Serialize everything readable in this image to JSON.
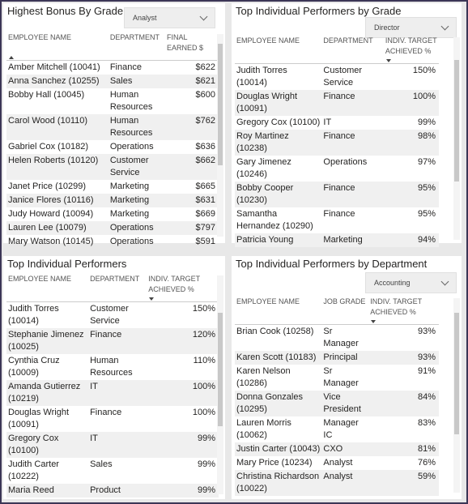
{
  "panels": [
    {
      "title": "Highest Bonus By Grade",
      "slicer": "Analyst",
      "columns": [
        "EMPLOYEE NAME",
        "DEPARTMENT",
        "FINAL EARNED $"
      ],
      "rows": [
        [
          "Amber Mitchell (10041)",
          "Finance",
          "$622"
        ],
        [
          "Anna Sanchez (10255)",
          "Sales",
          "$621"
        ],
        [
          "Bobby Hall (10045)",
          "Human Resources",
          "$600"
        ],
        [
          "Carol Wood (10110)",
          "Human Resources",
          "$762"
        ],
        [
          "Gabriel Cox (10182)",
          "Operations",
          "$636"
        ],
        [
          "Helen Roberts (10120)",
          "Customer Service",
          "$662"
        ],
        [
          "Janet Price (10299)",
          "Marketing",
          "$665"
        ],
        [
          "Janice Flores (10116)",
          "Marketing",
          "$631"
        ],
        [
          "Judy Howard (10094)",
          "Marketing",
          "$669"
        ],
        [
          "Lauren Lee (10079)",
          "Operations",
          "$797"
        ],
        [
          "Mary Watson (10145)",
          "Operations",
          "$591"
        ]
      ]
    },
    {
      "title": "Top Individual Performers by Grade",
      "slicer": "Director",
      "columns": [
        "EMPLOYEE NAME",
        "DEPARTMENT",
        "INDIV. TARGET ACHIEVED %"
      ],
      "rows": [
        [
          "Judith Torres (10014)",
          "Customer Service",
          "150%"
        ],
        [
          "Douglas Wright (10091)",
          "Finance",
          "100%"
        ],
        [
          "Gregory Cox (10100)",
          "IT",
          "99%"
        ],
        [
          "Roy Martinez (10238)",
          "Finance",
          "98%"
        ],
        [
          "Gary Jimenez (10246)",
          "Operations",
          "97%"
        ],
        [
          "Bobby Cooper (10230)",
          "Finance",
          "95%"
        ],
        [
          "Samantha Hernandez (10290)",
          "Finance",
          "95%"
        ],
        [
          "Patricia Young",
          "Marketing",
          "94%"
        ]
      ]
    },
    {
      "title": "Top Individual Performers",
      "columns": [
        "EMPLOYEE NAME",
        "DEPARTMENT",
        "INDIV. TARGET ACHIEVED %"
      ],
      "rows": [
        [
          "Judith Torres (10014)",
          "Customer Service",
          "150%"
        ],
        [
          "Stephanie Jimenez (10025)",
          "Finance",
          "120%"
        ],
        [
          "Cynthia Cruz (10009)",
          "Human Resources",
          "110%"
        ],
        [
          "Amanda Gutierrez (10219)",
          "IT",
          "100%"
        ],
        [
          "Douglas Wright (10091)",
          "Finance",
          "100%"
        ],
        [
          "Gregory Cox (10100)",
          "IT",
          "99%"
        ],
        [
          "Judith Carter (10222)",
          "Sales",
          "99%"
        ],
        [
          "Maria Reed",
          "Product",
          "99%"
        ]
      ]
    },
    {
      "title": "Top Individual Performers by Department",
      "slicer": "Accounting",
      "columns": [
        "EMPLOYEE NAME",
        "JOB GRADE",
        "INDIV. TARGET ACHIEVED %"
      ],
      "rows": [
        [
          "Brian Cook (10258)",
          "Sr Manager",
          "93%"
        ],
        [
          "Karen Scott (10183)",
          "Principal",
          "93%"
        ],
        [
          "Karen Nelson (10286)",
          "Sr Manager",
          "91%"
        ],
        [
          "Donna Gonzales (10295)",
          "Vice President",
          "84%"
        ],
        [
          "Lauren Morris (10062)",
          "Manager IC",
          "83%"
        ],
        [
          "Justin Carter (10043)",
          "CXO",
          "81%"
        ],
        [
          "Mary Price (10234)",
          "Analyst",
          "76%"
        ],
        [
          "Christina Richardson (10022)",
          "Analyst",
          "59%"
        ]
      ]
    }
  ]
}
